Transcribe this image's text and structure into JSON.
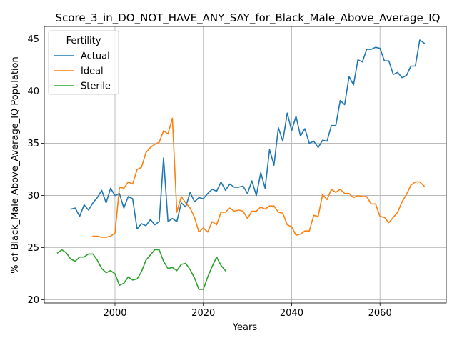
{
  "chart_data": {
    "type": "line",
    "title": "Score_3_in_DO_NOT_HAVE_ANY_SAY_for_Black_Male_Above_Average_IQ",
    "xlabel": "Years",
    "ylabel": "% of Black_Male Above_Average_IQ Population",
    "xlim": [
      1984,
      2075
    ],
    "ylim": [
      19.7,
      46.2
    ],
    "xticks": [
      2000,
      2020,
      2040,
      2060
    ],
    "yticks": [
      20,
      25,
      30,
      35,
      40,
      45
    ],
    "grid": true,
    "legend": {
      "title": "Fertility",
      "placement": "upper-left"
    },
    "series": [
      {
        "name": "Actual",
        "color": "#1f77b4",
        "x": [
          1990,
          1991,
          1992,
          1993,
          1994,
          1995,
          1996,
          1997,
          1998,
          1999,
          2000,
          2001,
          2002,
          2003,
          2004,
          2005,
          2006,
          2007,
          2008,
          2009,
          2010,
          2011,
          2012,
          2013,
          2014,
          2015,
          2016,
          2017,
          2018,
          2019,
          2020,
          2021,
          2022,
          2023,
          2024,
          2025,
          2026,
          2027,
          2028,
          2029,
          2030,
          2031,
          2032,
          2033,
          2034,
          2035,
          2036,
          2037,
          2038,
          2039,
          2040,
          2041,
          2042,
          2043,
          2044,
          2045,
          2046,
          2047,
          2048,
          2049,
          2050,
          2051,
          2052,
          2053,
          2054,
          2055,
          2056,
          2057,
          2058,
          2059,
          2060,
          2061,
          2062,
          2063,
          2064,
          2065,
          2066,
          2067,
          2068,
          2069,
          2070
        ],
        "values": [
          28.7,
          28.8,
          28.0,
          29.1,
          28.6,
          29.3,
          29.8,
          30.5,
          29.3,
          30.7,
          30.0,
          30.2,
          28.8,
          29.9,
          29.7,
          26.8,
          27.3,
          27.1,
          27.7,
          27.2,
          27.5,
          33.6,
          27.5,
          27.8,
          27.5,
          29.3,
          28.9,
          30.3,
          29.4,
          29.8,
          29.7,
          30.2,
          30.6,
          30.4,
          31.3,
          30.5,
          31.1,
          30.8,
          30.8,
          30.9,
          30.2,
          31.4,
          30.0,
          32.2,
          30.7,
          34.4,
          32.9,
          36.5,
          35.2,
          37.9,
          36.2,
          37.6,
          35.7,
          36.4,
          35.0,
          35.2,
          34.6,
          35.3,
          35.2,
          36.7,
          36.7,
          39.1,
          38.7,
          41.4,
          40.6,
          43.0,
          42.8,
          44.0,
          44.0,
          44.2,
          44.1,
          42.9,
          42.9,
          41.6,
          41.8,
          41.3,
          41.5,
          42.4,
          42.4,
          44.9,
          44.6
        ]
      },
      {
        "name": "Ideal",
        "color": "#ff7f0e",
        "x": [
          1995,
          1996,
          1997,
          1998,
          1999,
          2000,
          2001,
          2002,
          2003,
          2004,
          2005,
          2006,
          2007,
          2008,
          2009,
          2010,
          2011,
          2012,
          2013,
          2014,
          2015,
          2016,
          2017,
          2018,
          2019,
          2020,
          2021,
          2022,
          2023,
          2024,
          2025,
          2026,
          2027,
          2028,
          2029,
          2030,
          2031,
          2032,
          2033,
          2034,
          2035,
          2036,
          2037,
          2038,
          2039,
          2040,
          2041,
          2042,
          2043,
          2044,
          2045,
          2046,
          2047,
          2048,
          2049,
          2050,
          2051,
          2052,
          2053,
          2054,
          2055,
          2056,
          2057,
          2058,
          2059,
          2060,
          2061,
          2062,
          2063,
          2064,
          2065,
          2066,
          2067,
          2068,
          2069,
          2070
        ],
        "values": [
          26.1,
          26.1,
          26.0,
          26.0,
          26.1,
          26.4,
          30.8,
          30.7,
          31.3,
          31.1,
          32.5,
          32.7,
          34.1,
          34.6,
          34.9,
          35.1,
          36.2,
          35.9,
          37.4,
          28.4,
          29.9,
          29.3,
          28.8,
          27.9,
          26.5,
          26.9,
          26.5,
          27.5,
          27.2,
          28.4,
          28.4,
          28.8,
          28.5,
          28.6,
          28.5,
          27.8,
          28.5,
          28.5,
          28.9,
          28.7,
          29.0,
          29.0,
          28.4,
          28.3,
          27.2,
          27.0,
          26.2,
          26.3,
          26.6,
          26.6,
          28.1,
          28.0,
          30.1,
          29.6,
          30.6,
          30.3,
          30.6,
          30.2,
          30.2,
          29.8,
          30.0,
          29.9,
          29.9,
          29.2,
          29.2,
          28.0,
          27.9,
          27.4,
          27.9,
          28.4,
          29.4,
          30.1,
          31.0,
          31.3,
          31.3,
          30.9
        ]
      },
      {
        "name": "Sterile",
        "color": "#2ca02c",
        "x": [
          1987,
          1988,
          1989,
          1990,
          1991,
          1992,
          1993,
          1994,
          1995,
          1996,
          1997,
          1998,
          1999,
          2000,
          2001,
          2002,
          2003,
          2004,
          2005,
          2006,
          2007,
          2008,
          2009,
          2010,
          2011,
          2012,
          2013,
          2014,
          2015,
          2016,
          2017,
          2018,
          2019,
          2020,
          2021,
          2022,
          2023,
          2024,
          2025
        ],
        "values": [
          24.5,
          24.8,
          24.5,
          23.9,
          23.7,
          24.1,
          24.1,
          24.4,
          24.4,
          23.8,
          23.0,
          22.6,
          22.8,
          22.5,
          21.4,
          21.6,
          22.2,
          21.9,
          22.0,
          22.7,
          23.8,
          24.3,
          24.8,
          24.8,
          23.7,
          23.0,
          23.1,
          22.8,
          23.4,
          23.5,
          22.9,
          22.1,
          21.0,
          21.0,
          22.2,
          23.2,
          24.1,
          23.3,
          22.8
        ]
      }
    ]
  }
}
